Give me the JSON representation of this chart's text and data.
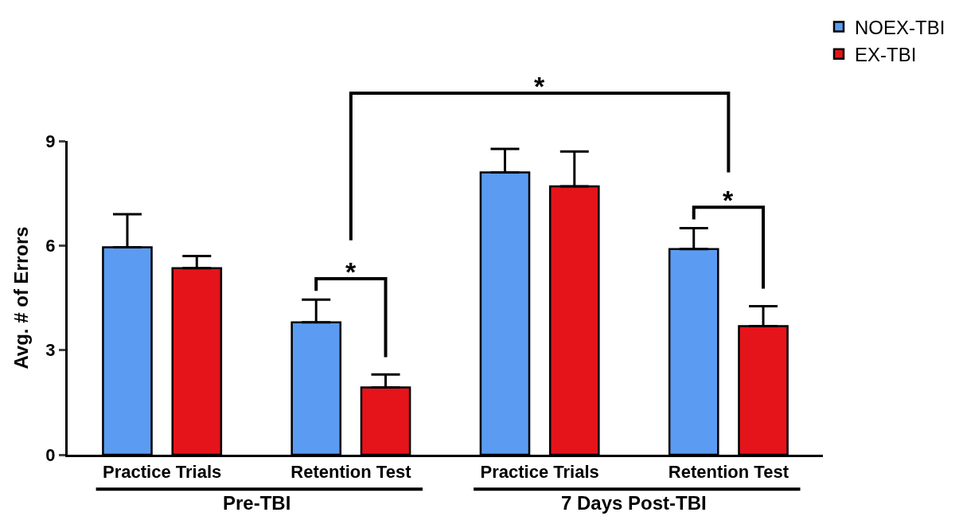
{
  "chart_data": {
    "type": "bar",
    "ylabel": "Avg. # of Errors",
    "categories": [
      "Practice Trials",
      "Retention Test",
      "Practice Trials",
      "Retention Test"
    ],
    "series": [
      {
        "name": "NOEX-TBI",
        "color": "#5b9cf2",
        "values": [
          5.95,
          3.8,
          8.1,
          5.9
        ],
        "errors": [
          [
            5.95,
            6.9
          ],
          [
            3.8,
            4.45
          ],
          [
            8.1,
            8.77
          ],
          [
            5.9,
            6.5
          ]
        ]
      },
      {
        "name": "EX-TBI",
        "color": "#e5141a",
        "values": [
          5.35,
          1.93,
          7.7,
          3.69
        ],
        "errors": [
          [
            5.35,
            5.7
          ],
          [
            1.93,
            2.3
          ],
          [
            7.7,
            8.7
          ],
          [
            3.69,
            4.26
          ]
        ]
      }
    ],
    "ylim": [
      0,
      9
    ],
    "yticks": [
      0,
      3,
      6,
      9
    ],
    "legend": "top right",
    "annotations": [
      "*",
      "*",
      "*",
      "Pre-TBI",
      "7 Days Post-TBI"
    ]
  }
}
